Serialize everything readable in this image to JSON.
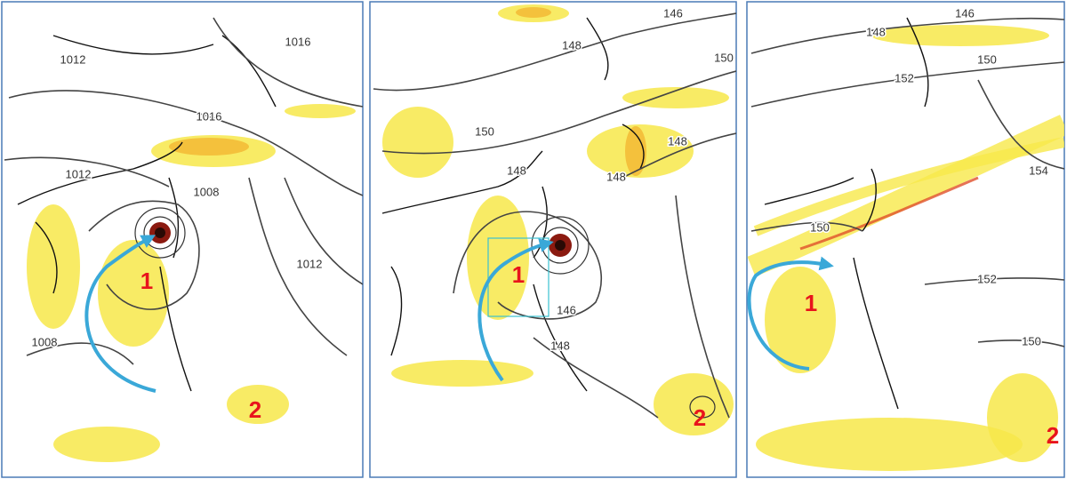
{
  "panels": [
    {
      "contour_labels": [
        "1012",
        "1016",
        "1016",
        "1012",
        "1008",
        "1012",
        "1008"
      ],
      "markers": [
        "1",
        "2"
      ]
    },
    {
      "contour_labels": [
        "146",
        "148",
        "150",
        "150",
        "148",
        "148",
        "148",
        "146",
        "148"
      ],
      "markers": [
        "1",
        "2"
      ]
    },
    {
      "contour_labels": [
        "146",
        "148",
        "150",
        "152",
        "154",
        "150",
        "152",
        "150"
      ],
      "markers": [
        "1",
        "2"
      ]
    }
  ]
}
